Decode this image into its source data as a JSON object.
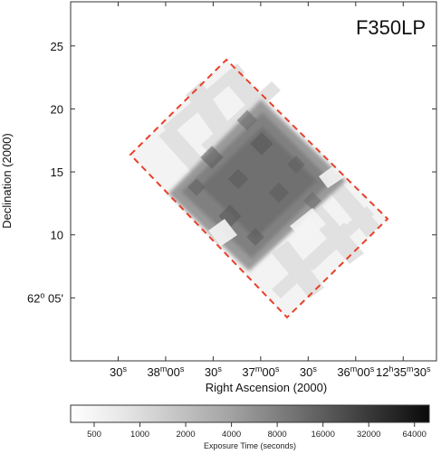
{
  "chart_data": {
    "type": "heatmap",
    "title": "",
    "panel_label": "F350LP",
    "xlabel": "Right Ascension (2000)",
    "ylabel": "Declination (2000)",
    "x_ticks": [
      {
        "pos": 1,
        "label": "30",
        "sup": "s"
      },
      {
        "pos": 2,
        "label": "38",
        "sup": "m",
        "label2": "00",
        "sup2": "s"
      },
      {
        "pos": 3,
        "label": "30",
        "sup": "s"
      },
      {
        "pos": 4,
        "label": "37",
        "sup": "m",
        "label2": "00",
        "sup2": "s"
      },
      {
        "pos": 5,
        "label": "30",
        "sup": "s"
      },
      {
        "pos": 6,
        "label": "36",
        "sup": "m",
        "label2": "00",
        "sup2": "s"
      },
      {
        "pos": 7,
        "label": "12",
        "sup": "h",
        "label2": "35",
        "sup2": "m",
        "label3": "30",
        "sup3": "s"
      }
    ],
    "y_ticks": [
      {
        "value": 5,
        "label": "62",
        "sup": "o",
        "label2": " 05'"
      },
      {
        "value": 10,
        "label": "10"
      },
      {
        "value": 15,
        "label": "15"
      },
      {
        "value": 20,
        "label": "20"
      },
      {
        "value": 25,
        "label": "25"
      }
    ],
    "ylim": [
      0,
      28.5
    ],
    "xlim": [
      0,
      7.7
    ],
    "coverage_outline_color": "#e8402a",
    "colorbar": {
      "title": "Exposure Time (seconds)",
      "scale": "log",
      "ticks": [
        "500",
        "1000",
        "2000",
        "4000",
        "8000",
        "16000",
        "32000",
        "64000"
      ],
      "min": 350,
      "max": 80000,
      "color_low": "#ffffff",
      "color_high": "#0a0a0a"
    }
  }
}
